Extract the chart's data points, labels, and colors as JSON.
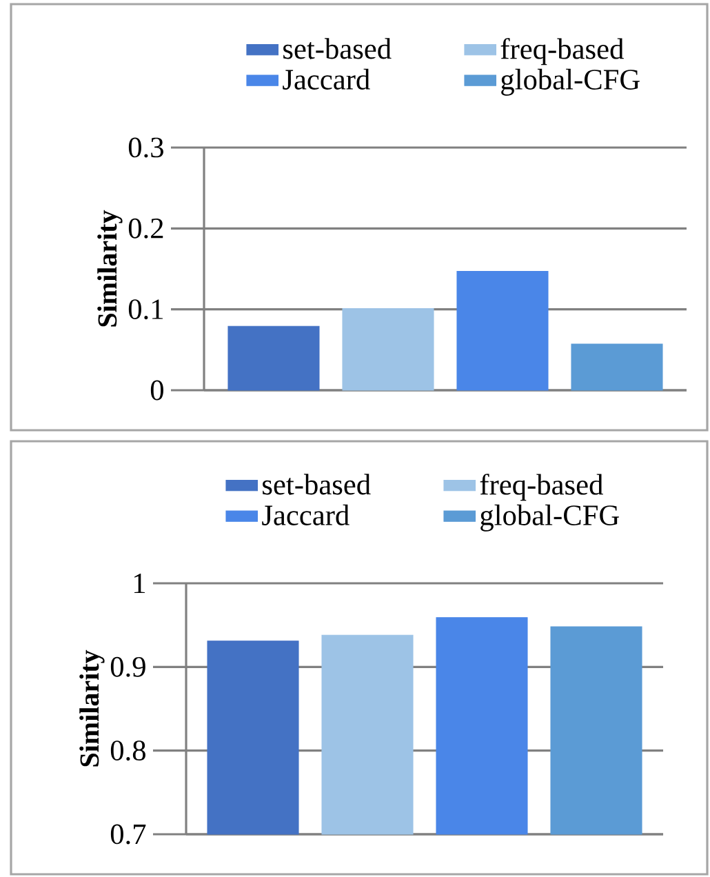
{
  "chart_data": [
    {
      "type": "bar",
      "ylabel": "Similarity",
      "categories": [
        null
      ],
      "ylim": [
        0,
        0.3
      ],
      "yticks": [
        0,
        0.1,
        0.2,
        0.3
      ],
      "grid": "y",
      "legend": "top",
      "series": [
        {
          "name": "set-based",
          "color": "#4472c4",
          "values": [
            0.079
          ]
        },
        {
          "name": "freq-based",
          "color": "#9dc3e6",
          "values": [
            0.101
          ]
        },
        {
          "name": "Jaccard",
          "color": "#4a86e8",
          "values": [
            0.147
          ]
        },
        {
          "name": "global-CFG",
          "color": "#5b9bd5",
          "values": [
            0.057
          ]
        }
      ]
    },
    {
      "type": "bar",
      "ylabel": "Similarity",
      "categories": [
        null
      ],
      "ylim": [
        0.7,
        1
      ],
      "yticks": [
        0.7,
        0.8,
        0.9,
        1
      ],
      "grid": "y",
      "legend": "top",
      "series": [
        {
          "name": "set-based",
          "color": "#4472c4",
          "values": [
            0.931
          ]
        },
        {
          "name": "freq-based",
          "color": "#9dc3e6",
          "values": [
            0.938
          ]
        },
        {
          "name": "Jaccard",
          "color": "#4a86e8",
          "values": [
            0.959
          ]
        },
        {
          "name": "global-CFG",
          "color": "#5b9bd5",
          "values": [
            0.948
          ]
        }
      ]
    }
  ]
}
